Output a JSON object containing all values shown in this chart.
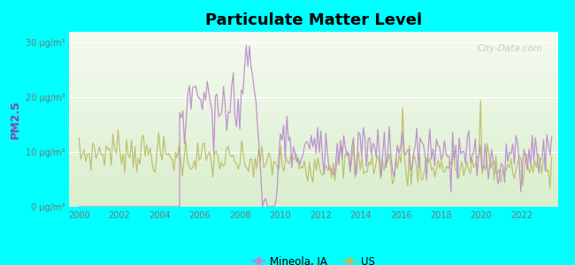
{
  "title": "Particulate Matter Level",
  "ylabel": "PM2.5",
  "background_outer": "#00FFFF",
  "ylim": [
    0,
    32
  ],
  "yticks": [
    0,
    10,
    20,
    30
  ],
  "ytick_labels": [
    "0 μg/m³",
    "10 μg/m³",
    "20 μg/m³",
    "30 μg/m³"
  ],
  "xlim_start": 1999.5,
  "xlim_end": 2023.8,
  "xticks": [
    2000,
    2002,
    2004,
    2006,
    2008,
    2010,
    2012,
    2014,
    2016,
    2018,
    2020,
    2022
  ],
  "mineola_color": "#bb88cc",
  "us_color": "#bbbb66",
  "legend_mineola": "Mineola, IA",
  "legend_us": "US",
  "watermark": "City-Data.com",
  "plot_bg_top": "#f5faf0",
  "plot_bg_bottom": "#d8eecc"
}
